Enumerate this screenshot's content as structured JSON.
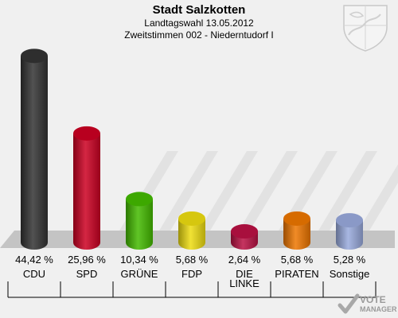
{
  "header": {
    "title": "Stadt Salzkotten",
    "subtitle1": "Landtagswahl 13.05.2012",
    "subtitle2": "Zweitstimmen 002 - Niederntudorf I"
  },
  "brand": {
    "line1": "VOTE",
    "line2": "MANAGER"
  },
  "chart_data": {
    "type": "bar",
    "categories": [
      "CDU",
      "SPD",
      "GRÜNE",
      "FDP",
      "DIE LINKE",
      "PIRATEN",
      "Sonstige"
    ],
    "category_lines": [
      [
        "CDU"
      ],
      [
        "SPD"
      ],
      [
        "GRÜNE"
      ],
      [
        "FDP"
      ],
      [
        "DIE",
        "LINKE"
      ],
      [
        "PIRATEN"
      ],
      [
        "Sonstige"
      ]
    ],
    "values": [
      44.42,
      25.96,
      10.34,
      5.68,
      2.64,
      5.68,
      5.28
    ],
    "value_labels": [
      "44,42 %",
      "25,96 %",
      "10,34 %",
      "5,68 %",
      "2,64 %",
      "5,68 %",
      "5,28 %"
    ],
    "colors": [
      "#333333",
      "#cc0022",
      "#44bb00",
      "#eedd11",
      "#bb1144",
      "#ee7700",
      "#99aadd"
    ],
    "ylim": [
      0,
      46
    ]
  }
}
